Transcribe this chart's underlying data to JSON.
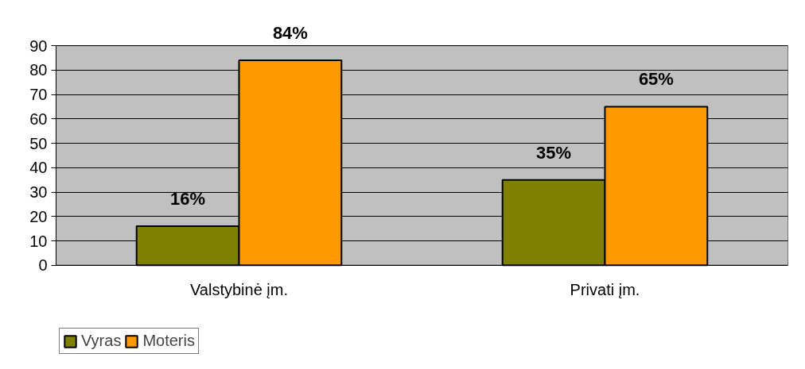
{
  "chart_data": {
    "type": "bar",
    "categories": [
      "Valstybinė įm.",
      "Privati įm."
    ],
    "series": [
      {
        "name": "Vyras",
        "color": "#808000",
        "values": [
          16,
          35
        ],
        "value_labels": [
          "16%",
          "35%"
        ]
      },
      {
        "name": "Moteris",
        "color": "#ff9900",
        "values": [
          84,
          65
        ],
        "value_labels": [
          "84%",
          "65%"
        ]
      }
    ],
    "ylim": [
      0,
      90
    ],
    "yticks": [
      0,
      10,
      20,
      30,
      40,
      50,
      60,
      70,
      80,
      90
    ],
    "grid": "y",
    "legend": "bottom left"
  }
}
